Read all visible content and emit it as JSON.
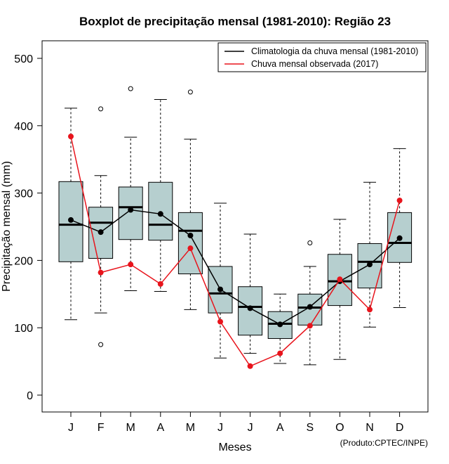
{
  "chart_data": {
    "type": "boxplot",
    "title": "Boxplot de precipitação mensal (1981-2010): Região 23",
    "xlabel": "Meses",
    "ylabel": "Precipitação mensal (mm)",
    "ylim": [
      -25,
      525
    ],
    "yticks": [
      0,
      100,
      200,
      300,
      400,
      500
    ],
    "categories": [
      "J",
      "F",
      "M",
      "A",
      "M",
      "J",
      "J",
      "A",
      "S",
      "O",
      "N",
      "D"
    ],
    "boxes": [
      {
        "whisker_low": 112,
        "q1": 198,
        "median": 253,
        "q3": 317,
        "whisker_high": 426,
        "outliers": []
      },
      {
        "whisker_low": 122,
        "q1": 203,
        "median": 256,
        "q3": 279,
        "whisker_high": 326,
        "outliers": [
          425,
          75
        ]
      },
      {
        "whisker_low": 155,
        "q1": 231,
        "median": 279,
        "q3": 309,
        "whisker_high": 383,
        "outliers": [
          455
        ]
      },
      {
        "whisker_low": 154,
        "q1": 230,
        "median": 253,
        "q3": 316,
        "whisker_high": 439,
        "outliers": []
      },
      {
        "whisker_low": 127,
        "q1": 180,
        "median": 244,
        "q3": 271,
        "whisker_high": 380,
        "outliers": [
          450
        ]
      },
      {
        "whisker_low": 55,
        "q1": 122,
        "median": 151,
        "q3": 191,
        "whisker_high": 285,
        "outliers": []
      },
      {
        "whisker_low": 62,
        "q1": 89,
        "median": 131,
        "q3": 161,
        "whisker_high": 239,
        "outliers": []
      },
      {
        "whisker_low": 47,
        "q1": 84,
        "median": 106,
        "q3": 124,
        "whisker_high": 150,
        "outliers": []
      },
      {
        "whisker_low": 45,
        "q1": 104,
        "median": 130,
        "q3": 150,
        "whisker_high": 191,
        "outliers": [
          226
        ]
      },
      {
        "whisker_low": 53,
        "q1": 133,
        "median": 169,
        "q3": 209,
        "whisker_high": 261,
        "outliers": []
      },
      {
        "whisker_low": 101,
        "q1": 159,
        "median": 198,
        "q3": 225,
        "whisker_high": 316,
        "outliers": []
      },
      {
        "whisker_low": 130,
        "q1": 197,
        "median": 226,
        "q3": 271,
        "whisker_high": 366,
        "outliers": []
      }
    ],
    "series": [
      {
        "name": "Climatologia da chuva mensal (1981-2010)",
        "color": "#000000",
        "values": [
          260,
          242,
          275,
          269,
          237,
          157,
          129,
          105,
          131,
          169,
          194,
          233
        ]
      },
      {
        "name": "Chuva mensal observada (2017)",
        "color": "#e8141c",
        "values": [
          384,
          182,
          194,
          165,
          218,
          109,
          43,
          62,
          103,
          172,
          127,
          289
        ]
      }
    ],
    "legend_position": "top-right",
    "box_fill": "#b6cfcf",
    "credit": "(Produto:CPTEC/INPE)"
  }
}
